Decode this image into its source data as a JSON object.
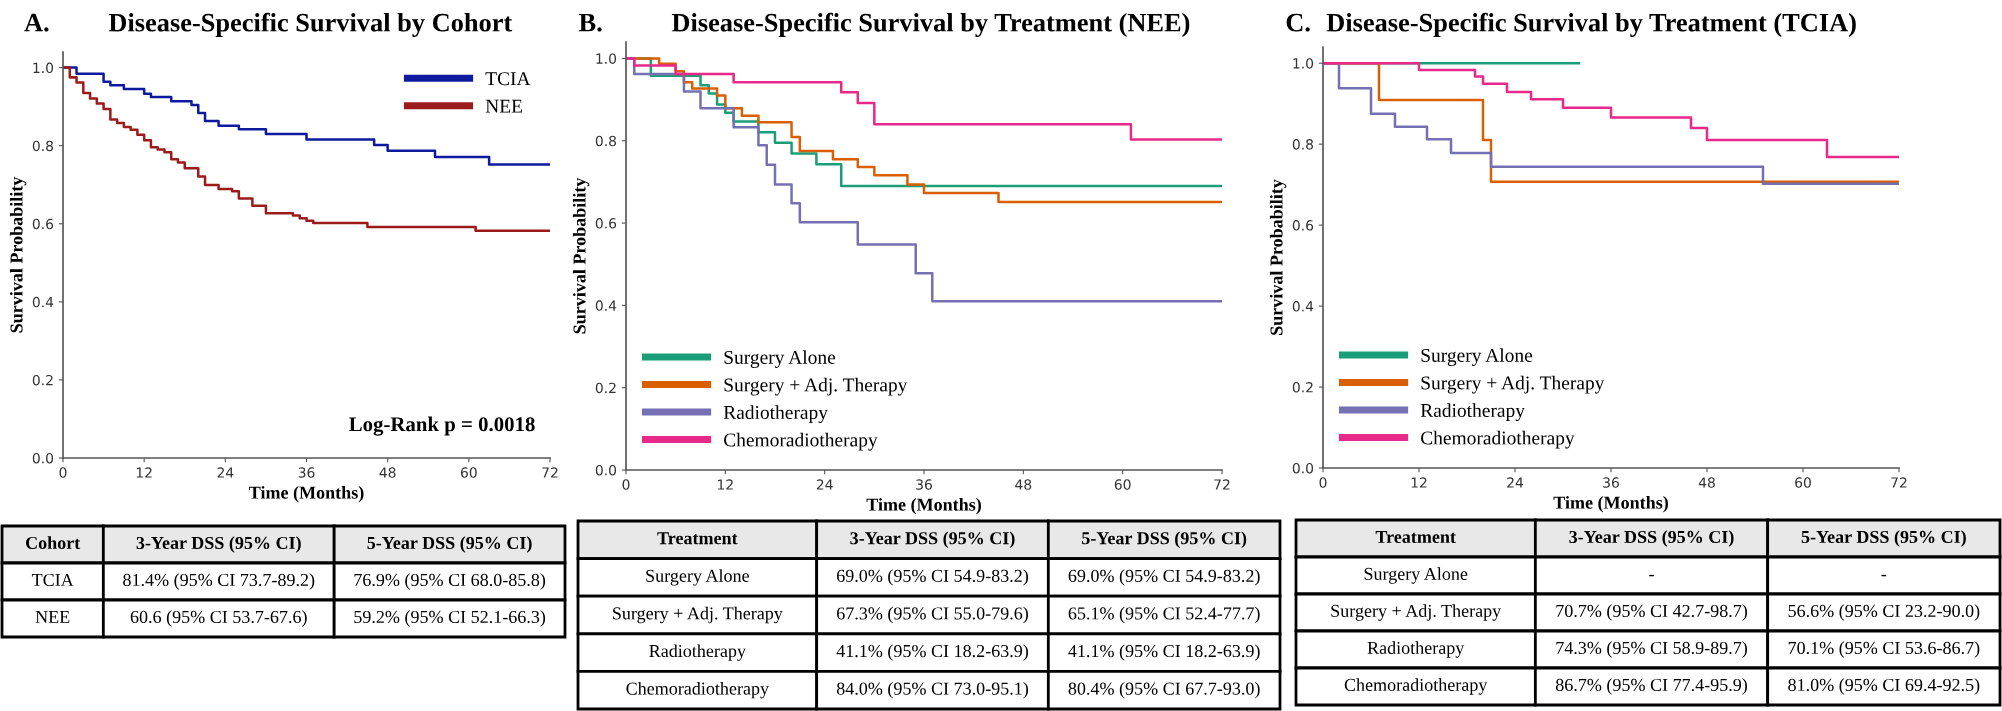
{
  "chart_data": [
    {
      "type": "step",
      "title": "Disease-Specific Survival by Cohort",
      "xlabel": "Time (Months)",
      "ylabel": "Survival Probability",
      "xlim": [
        0,
        72
      ],
      "xticks": [
        0,
        12,
        24,
        36,
        48,
        60,
        72
      ],
      "ylim": [
        0,
        1.04
      ],
      "yticks": [
        {
          "value": 0,
          "label": "0.0"
        },
        {
          "value": 0.2,
          "label": "0.2"
        },
        {
          "value": 0.4,
          "label": "0.4"
        },
        {
          "value": 0.6,
          "label": "0.6"
        },
        {
          "value": 0.8,
          "label": "0.8"
        },
        {
          "value": 1,
          "label": "1.0"
        }
      ],
      "grid": false,
      "legend": "top right",
      "annotations": [
        "A.",
        "Log-Rank p = 0.0018"
      ],
      "series": [
        {
          "name": "TCIA",
          "color": "#0d1a9e",
          "x": [
            0,
            2,
            6,
            7,
            9,
            12,
            13,
            16,
            19,
            20,
            21,
            23,
            26,
            30,
            36,
            46,
            48,
            55,
            63,
            72
          ],
          "values": [
            1.0,
            0.984,
            0.964,
            0.955,
            0.945,
            0.933,
            0.925,
            0.914,
            0.904,
            0.884,
            0.863,
            0.851,
            0.842,
            0.83,
            0.816,
            0.802,
            0.787,
            0.771,
            0.752,
            0.752
          ]
        },
        {
          "name": "NEE",
          "color": "#9b1b1b",
          "x": [
            0,
            1,
            2,
            3,
            4,
            5,
            6,
            7,
            8,
            9,
            10,
            11,
            12,
            13,
            14,
            15,
            16,
            17,
            18,
            20,
            21,
            23,
            25,
            26,
            28,
            30,
            34,
            35,
            36,
            37,
            45,
            61,
            72
          ],
          "values": [
            1.0,
            0.975,
            0.962,
            0.935,
            0.921,
            0.908,
            0.894,
            0.867,
            0.858,
            0.848,
            0.841,
            0.828,
            0.814,
            0.796,
            0.79,
            0.783,
            0.765,
            0.757,
            0.742,
            0.721,
            0.699,
            0.689,
            0.683,
            0.665,
            0.646,
            0.627,
            0.621,
            0.614,
            0.608,
            0.602,
            0.592,
            0.582,
            0.582
          ]
        }
      ]
    },
    {
      "type": "step",
      "title": "Disease-Specific Survival by Treatment (NEE)",
      "xlabel": "Time (Months)",
      "ylabel": "Survival Probability",
      "xlim": [
        0,
        72
      ],
      "xticks": [
        0,
        12,
        24,
        36,
        48,
        60,
        72
      ],
      "ylim": [
        0,
        1.04
      ],
      "yticks": [
        {
          "value": 0,
          "label": "0.0"
        },
        {
          "value": 0.2,
          "label": "0.2"
        },
        {
          "value": 0.4,
          "label": "0.4"
        },
        {
          "value": 0.6,
          "label": "0.6"
        },
        {
          "value": 0.8,
          "label": "0.8"
        },
        {
          "value": 1,
          "label": "1.0"
        }
      ],
      "grid": false,
      "legend": "bottom left",
      "annotations": [
        "B."
      ],
      "series": [
        {
          "name": "Surgery Alone",
          "color": "#1b9e77",
          "x": [
            0,
            3,
            9,
            10,
            11,
            12,
            13,
            16,
            18,
            20,
            23,
            26,
            72
          ],
          "values": [
            1.0,
            0.958,
            0.935,
            0.915,
            0.888,
            0.868,
            0.847,
            0.821,
            0.795,
            0.769,
            0.743,
            0.69,
            0.69
          ]
        },
        {
          "name": "Surgery + Adj. Therapy",
          "color": "#d95f02",
          "x": [
            0,
            4,
            6,
            7,
            8,
            11,
            12,
            14,
            16,
            20,
            21,
            25,
            28,
            30,
            34,
            36,
            45,
            72
          ],
          "values": [
            1.0,
            0.987,
            0.969,
            0.942,
            0.927,
            0.91,
            0.879,
            0.861,
            0.845,
            0.809,
            0.775,
            0.755,
            0.736,
            0.716,
            0.694,
            0.673,
            0.651,
            0.651
          ]
        },
        {
          "name": "Radiotherapy",
          "color": "#7570b3",
          "x": [
            0,
            1,
            7,
            9,
            13,
            16,
            17,
            18,
            20,
            21,
            28,
            35,
            37,
            72
          ],
          "values": [
            1.0,
            0.962,
            0.92,
            0.879,
            0.833,
            0.789,
            0.742,
            0.694,
            0.648,
            0.602,
            0.548,
            0.478,
            0.41,
            0.41
          ]
        },
        {
          "name": "Chemoradiotherapy",
          "color": "#e7298a",
          "x": [
            0,
            1,
            6,
            13,
            26,
            28,
            30,
            61,
            72
          ],
          "values": [
            1.0,
            0.983,
            0.962,
            0.942,
            0.918,
            0.892,
            0.84,
            0.803,
            0.803
          ]
        }
      ]
    },
    {
      "type": "step",
      "title": "Disease-Specific Survival by Treatment (TCIA)",
      "xlabel": "Time (Months)",
      "ylabel": "Survival Probability",
      "xlim": [
        0,
        72
      ],
      "xticks": [
        0,
        12,
        24,
        36,
        48,
        60,
        72
      ],
      "ylim": [
        0,
        1.04
      ],
      "yticks": [
        {
          "value": 0,
          "label": "0.0"
        },
        {
          "value": 0.2,
          "label": "0.2"
        },
        {
          "value": 0.4,
          "label": "0.4"
        },
        {
          "value": 0.6,
          "label": "0.6"
        },
        {
          "value": 0.8,
          "label": "0.8"
        },
        {
          "value": 1,
          "label": "1.0"
        }
      ],
      "grid": false,
      "legend": "bottom left",
      "annotations": [
        "C."
      ],
      "series": [
        {
          "name": "Surgery Alone",
          "color": "#1b9e77",
          "x": [
            0,
            32
          ],
          "values": [
            1.0,
            1.0
          ]
        },
        {
          "name": "Surgery + Adj. Therapy",
          "color": "#d95f02",
          "x": [
            0,
            7,
            20,
            21,
            72
          ],
          "values": [
            1.0,
            0.909,
            0.81,
            0.707,
            0.707
          ]
        },
        {
          "name": "Radiotherapy",
          "color": "#7570b3",
          "x": [
            0,
            2,
            6,
            9,
            13,
            16,
            21,
            55,
            72
          ],
          "values": [
            1.0,
            0.938,
            0.875,
            0.843,
            0.812,
            0.778,
            0.744,
            0.702,
            0.702
          ]
        },
        {
          "name": "Chemoradiotherapy",
          "color": "#e7298a",
          "x": [
            0,
            12,
            19,
            20,
            23,
            26,
            30,
            36,
            46,
            48,
            63,
            72
          ],
          "values": [
            1.0,
            0.983,
            0.967,
            0.949,
            0.929,
            0.911,
            0.89,
            0.866,
            0.84,
            0.81,
            0.768,
            0.768
          ]
        }
      ]
    },
    {
      "type": "other",
      "annotations": [
        "Cohort",
        "3-Year DSS (95% CI)",
        "5-Year DSS (95% CI)",
        "TCIA",
        "81.4% (95% CI 73.7-89.2)",
        "76.9% (95% CI 68.0-85.8)",
        "NEE",
        "60.6 (95% CI 53.7-67.6)",
        "59.2% (95% CI 52.1-66.3)"
      ]
    },
    {
      "type": "other",
      "annotations": [
        "Treatment",
        "3-Year DSS (95% CI)",
        "5-Year DSS (95% CI)",
        "Surgery Alone",
        "69.0% (95% CI 54.9-83.2)",
        "69.0% (95% CI 54.9-83.2)",
        "Surgery + Adj. Therapy",
        "67.3% (95% CI 55.0-79.6)",
        "65.1% (95% CI 52.4-77.7)",
        "Radiotherapy",
        "41.1% (95% CI 18.2-63.9)",
        "41.1% (95% CI 18.2-63.9)",
        "Chemoradiotherapy",
        "84.0% (95% CI 73.0-95.1)",
        "80.4% (95% CI 67.7-93.0)"
      ]
    },
    {
      "type": "other",
      "annotations": [
        "Treatment",
        "3-Year DSS (95% CI)",
        "5-Year DSS (95% CI)",
        "Surgery Alone",
        "-",
        "-",
        "Surgery + Adj. Therapy",
        "70.7% (95% CI 42.7-98.7)",
        "56.6% (95% CI 23.2-90.0)",
        "Radiotherapy",
        "74.3% (95% CI 58.9-89.7)",
        "70.1% (95% CI 53.6-86.7)",
        "Chemoradiotherapy",
        "86.7% (95% CI 77.4-95.9)",
        "81.0% (95% CI 69.4-92.5)"
      ]
    }
  ]
}
